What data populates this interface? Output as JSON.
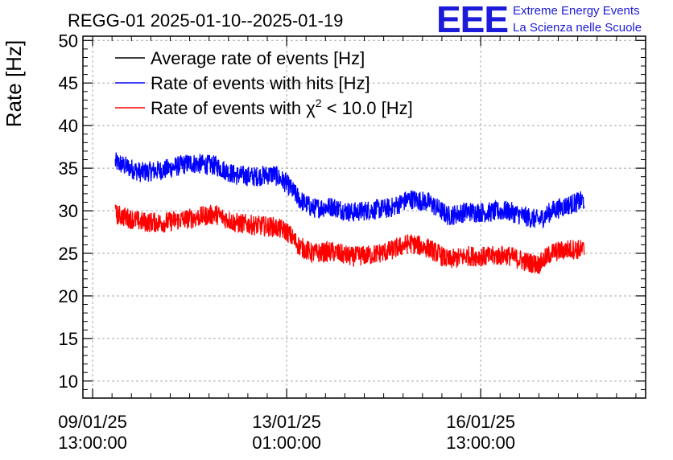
{
  "header": {
    "logo_text": "EEE",
    "logo_line1": "Extreme Energy Events",
    "logo_line2": "La Scienza nelle Scuole"
  },
  "chart_data": {
    "type": "line",
    "title": "REGG-01 2025-01-10--2025-01-19",
    "ylabel": "Rate [Hz]",
    "xlabel": "",
    "ylim": [
      8,
      50.5
    ],
    "xlim_hours": [
      -3,
      171
    ],
    "grid": true,
    "legend_position": "top-left",
    "yticks": [
      10,
      15,
      20,
      25,
      30,
      35,
      40,
      45,
      50
    ],
    "xticks": [
      {
        "hour": 0,
        "line1": "09/01/25",
        "line2": "13:00:00"
      },
      {
        "hour": 60,
        "line1": "13/01/25",
        "line2": "01:00:00"
      },
      {
        "hour": 120,
        "line1": "16/01/25",
        "line2": "13:00:00"
      }
    ],
    "series": [
      {
        "name": "Average rate of events [Hz]",
        "color": "#000000",
        "x_hours": [],
        "values": []
      },
      {
        "name": "Rate of events with hits [Hz]",
        "color": "#0000ff",
        "x_hours": [
          7,
          15,
          22,
          30,
          38,
          44,
          50,
          56,
          60,
          64,
          68,
          74,
          80,
          86,
          92,
          98,
          104,
          110,
          116,
          122,
          128,
          134,
          138,
          142,
          148,
          152
        ],
        "values": [
          35.7,
          34.5,
          34.8,
          35.6,
          35.3,
          34.2,
          34.0,
          34.3,
          33.2,
          31.3,
          30.3,
          30.5,
          29.8,
          30.1,
          30.3,
          31.4,
          31.0,
          29.4,
          29.9,
          29.8,
          30.0,
          29.3,
          28.9,
          30.0,
          30.8,
          31.2
        ]
      },
      {
        "name": "Rate of events with χ² < 10.0 [Hz]",
        "color": "#ff0000",
        "x_hours": [
          7,
          15,
          22,
          30,
          38,
          44,
          50,
          56,
          60,
          64,
          68,
          74,
          80,
          86,
          92,
          98,
          104,
          110,
          116,
          122,
          128,
          134,
          138,
          142,
          148,
          152
        ],
        "values": [
          29.6,
          28.7,
          28.6,
          29.1,
          29.6,
          28.6,
          28.3,
          28.1,
          27.6,
          25.8,
          25.0,
          25.2,
          24.6,
          24.8,
          25.3,
          26.2,
          25.6,
          24.2,
          24.7,
          24.6,
          24.8,
          24.0,
          23.7,
          25.1,
          25.5,
          25.4
        ]
      }
    ],
    "legend_labels": {
      "avg": "Average rate of events [Hz]",
      "hits": "Rate of events with hits [Hz]",
      "chi_prefix": "Rate of events with ",
      "chi_symbol": "χ",
      "chi_exp": "2",
      "chi_suffix": " < 10.0 [Hz]"
    }
  }
}
